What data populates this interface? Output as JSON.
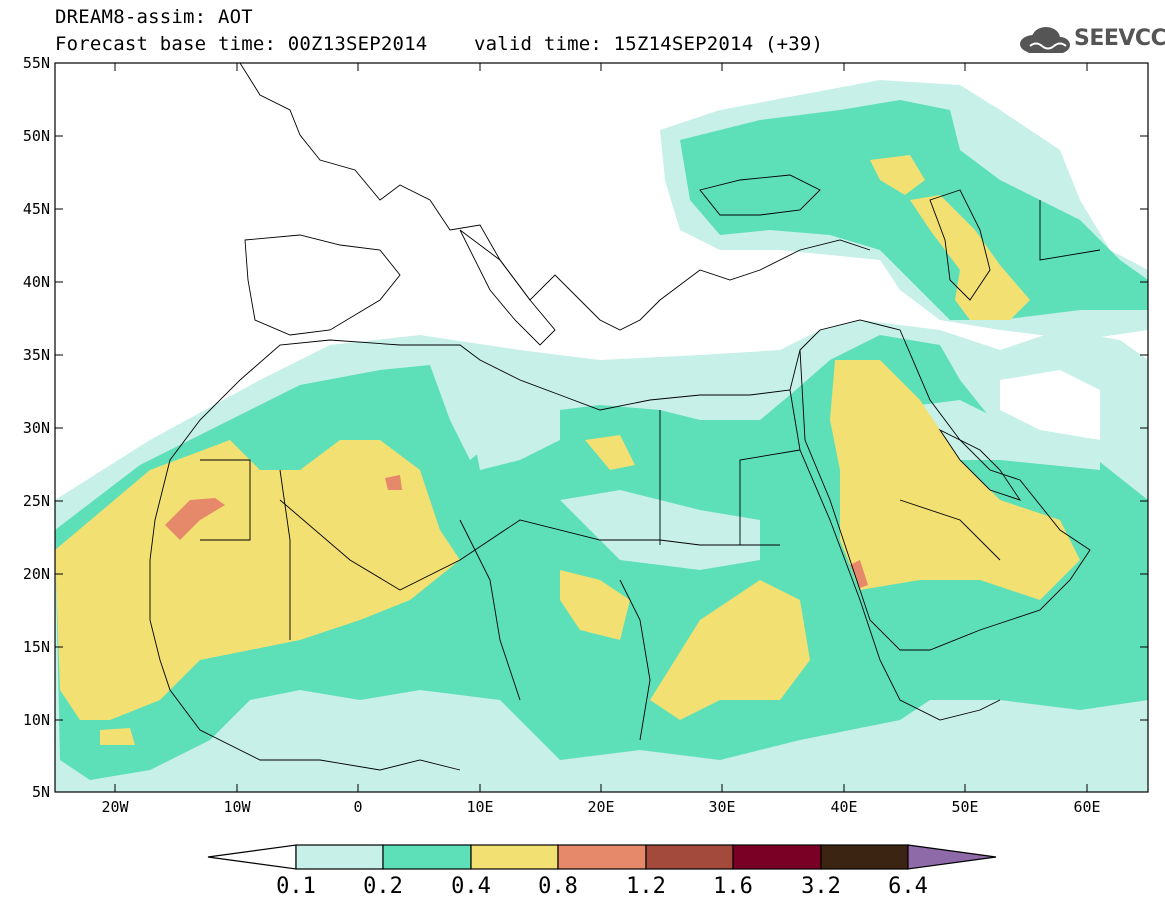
{
  "header": {
    "line1": "DREAM8-assim: AOT",
    "line2": "Forecast base time: 00Z13SEP2014    valid time: 15Z14SEP2014 (+39)",
    "logo_text": "SEEVCCC"
  },
  "map": {
    "lon_range": [
      -25,
      65
    ],
    "lat_range": [
      5,
      55
    ],
    "lat_labels": [
      "55N",
      "50N",
      "45N",
      "40N",
      "35N",
      "30N",
      "25N",
      "20N",
      "15N",
      "10N",
      "5N"
    ],
    "lon_labels": [
      "20W",
      "10W",
      "0",
      "10E",
      "20E",
      "30E",
      "40E",
      "50E",
      "60E"
    ]
  },
  "colorbar": {
    "labels": [
      "0.1",
      "0.2",
      "0.4",
      "0.8",
      "1.2",
      "1.6",
      "3.2",
      "6.4"
    ],
    "colors": [
      "#ffffff",
      "#c6f0e8",
      "#5ddfb8",
      "#f2e072",
      "#e6886a",
      "#a34a3c",
      "#7a0026",
      "#3b2412",
      "#8e6aa8"
    ]
  }
}
